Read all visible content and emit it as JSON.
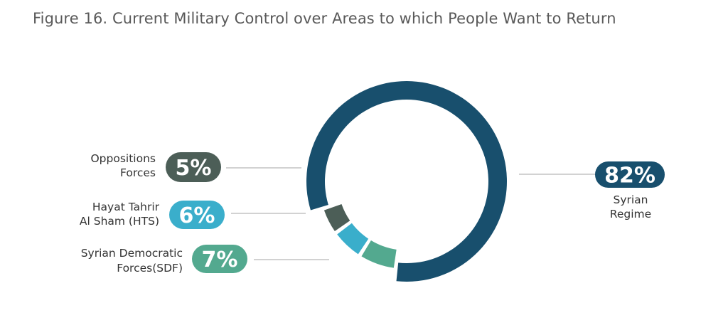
{
  "chart_data": {
    "type": "pie",
    "title": "Figure 16. Current Military Control over Areas to which People Want to Return",
    "unit": "%",
    "slices": [
      {
        "label": "Syrian Regime",
        "label_lines": [
          "Syrian",
          "Regime"
        ],
        "value": 82,
        "value_label": "82%",
        "color": "#184f6d"
      },
      {
        "label": "Syrian Democratic Forces(SDF)",
        "label_lines": [
          "Syrian Democratic",
          "Forces(SDF)"
        ],
        "value": 7,
        "value_label": "7%",
        "color": "#53a98f"
      },
      {
        "label": "Hayat Tahrir Al Sham (HTS)",
        "label_lines": [
          "Hayat Tahrir",
          "Al Sham (HTS)"
        ],
        "value": 6,
        "value_label": "6%",
        "color": "#3aaecb"
      },
      {
        "label": "Oppositions Forces",
        "label_lines": [
          "Oppositions",
          "Forces"
        ],
        "value": 5,
        "value_label": "5%",
        "color": "#4c5e57"
      }
    ]
  }
}
